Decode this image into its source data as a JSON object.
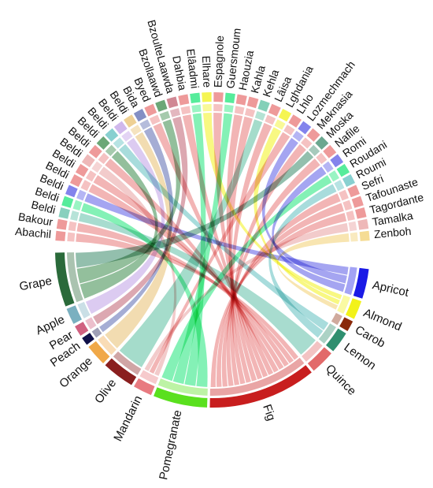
{
  "chart_data": {
    "type": "chord",
    "title": "",
    "groups": {
      "fruits": [
        {
          "name": "Apricot",
          "color": "#1a1ae6"
        },
        {
          "name": "Almond",
          "color": "#f2f21a"
        },
        {
          "name": "Carob",
          "color": "#8a2a0a"
        },
        {
          "name": "Lemon",
          "color": "#2f8f6f"
        },
        {
          "name": "Quince",
          "color": "#e26a6a"
        },
        {
          "name": "Fig",
          "color": "#c81e1e"
        },
        {
          "name": "Pomegranate",
          "color": "#5ae01e"
        },
        {
          "name": "Mandarin",
          "color": "#e87a80"
        },
        {
          "name": "Olive",
          "color": "#8a1e1e"
        },
        {
          "name": "Orange",
          "color": "#f0a848"
        },
        {
          "name": "Peach",
          "color": "#101048"
        },
        {
          "name": "Pear",
          "color": "#d06080"
        },
        {
          "name": "Apple",
          "color": "#7ab0c0"
        },
        {
          "name": "Grape",
          "color": "#2a6a3a"
        }
      ],
      "varieties": [
        {
          "name": "Abachil",
          "color": "#e87878"
        },
        {
          "name": "Bakour",
          "color": "#e87878"
        },
        {
          "name": "Beldi",
          "color": "#60c0a8"
        },
        {
          "name": "Beldi",
          "color": "#1ee67a"
        },
        {
          "name": "Beldi",
          "color": "#5a5ae6"
        },
        {
          "name": "Beldi",
          "color": "#e87878"
        },
        {
          "name": "Beldi",
          "color": "#e87878"
        },
        {
          "name": "Beldi",
          "color": "#e8a0a0"
        },
        {
          "name": "Beldi",
          "color": "#e87878"
        },
        {
          "name": "Beldi",
          "color": "#3a8a4a"
        },
        {
          "name": "Beldi",
          "color": "#60c0c0"
        },
        {
          "name": "Beldi",
          "color": "#c0a0e6"
        },
        {
          "name": "Beldi",
          "color": "#e8c070"
        },
        {
          "name": "Bida",
          "color": "#5a6ab0"
        },
        {
          "name": "Byed",
          "color": "#e87878"
        },
        {
          "name": "Bzollaawd",
          "color": "#3a8a4a"
        },
        {
          "name": "BzoulteLaawda",
          "color": "#c06070"
        },
        {
          "name": "Dahbia",
          "color": "#e87878"
        },
        {
          "name": "Elâadmi",
          "color": "#1ee67a"
        },
        {
          "name": "Elhare",
          "color": "#f2f21a"
        },
        {
          "name": "Espagnole",
          "color": "#e87878"
        },
        {
          "name": "Guersmoum",
          "color": "#1ee67a"
        },
        {
          "name": "Haouzia",
          "color": "#e87878"
        },
        {
          "name": "Kahla",
          "color": "#e87878"
        },
        {
          "name": "Kehla",
          "color": "#5ac0a0"
        },
        {
          "name": "Lâisa",
          "color": "#e87878"
        },
        {
          "name": "Lghdania",
          "color": "#f2f21a"
        },
        {
          "name": "Lhlo",
          "color": "#e87878"
        },
        {
          "name": "Lozmechmach",
          "color": "#5a5ae6"
        },
        {
          "name": "Meknasia",
          "color": "#e87878"
        },
        {
          "name": "Moska",
          "color": "#3a8a6a"
        },
        {
          "name": "Nafile",
          "color": "#e87878"
        },
        {
          "name": "Romi",
          "color": "#5a5ae6"
        },
        {
          "name": "Roudani",
          "color": "#1ee67a"
        },
        {
          "name": "Roumi",
          "color": "#60c0c0"
        },
        {
          "name": "Sefri",
          "color": "#e87878"
        },
        {
          "name": "Tafounaste",
          "color": "#e87878"
        },
        {
          "name": "Tagordante",
          "color": "#e87878"
        },
        {
          "name": "Tamalka",
          "color": "#e8a0a0"
        },
        {
          "name": "Zenboh",
          "color": "#f2d070"
        }
      ]
    },
    "links": [
      {
        "from": "Abachil",
        "to": "Fig"
      },
      {
        "from": "Bakour",
        "to": "Fig"
      },
      {
        "from": "Beldi",
        "to": "Quince"
      },
      {
        "from": "Beldi",
        "to": "Pomegranate"
      },
      {
        "from": "Beldi",
        "to": "Apricot"
      },
      {
        "from": "Beldi",
        "to": "Fig"
      },
      {
        "from": "Beldi",
        "to": "Fig"
      },
      {
        "from": "Beldi",
        "to": "Mandarin"
      },
      {
        "from": "Beldi",
        "to": "Fig"
      },
      {
        "from": "Beldi",
        "to": "Grape"
      },
      {
        "from": "Beldi",
        "to": "Lemon"
      },
      {
        "from": "Beldi",
        "to": "Apple"
      },
      {
        "from": "Beldi",
        "to": "Orange"
      },
      {
        "from": "Bida",
        "to": "Peach"
      },
      {
        "from": "Byed",
        "to": "Fig"
      },
      {
        "from": "Bzollaawd",
        "to": "Grape"
      },
      {
        "from": "BzoulteLaawda",
        "to": "Pear"
      },
      {
        "from": "Dahbia",
        "to": "Fig"
      },
      {
        "from": "Elâadmi",
        "to": "Pomegranate"
      },
      {
        "from": "Elhare",
        "to": "Almond"
      },
      {
        "from": "Espagnole",
        "to": "Fig"
      },
      {
        "from": "Guersmoum",
        "to": "Pomegranate"
      },
      {
        "from": "Haouzia",
        "to": "Fig"
      },
      {
        "from": "Kahla",
        "to": "Fig"
      },
      {
        "from": "Kehla",
        "to": "Olive"
      },
      {
        "from": "Lâisa",
        "to": "Fig"
      },
      {
        "from": "Lghdania",
        "to": "Almond"
      },
      {
        "from": "Lhlo",
        "to": "Mandarin"
      },
      {
        "from": "Lozmechmach",
        "to": "Apricot"
      },
      {
        "from": "Meknasia",
        "to": "Fig"
      },
      {
        "from": "Moska",
        "to": "Grape"
      },
      {
        "from": "Nafile",
        "to": "Fig"
      },
      {
        "from": "Romi",
        "to": "Apricot"
      },
      {
        "from": "Roudani",
        "to": "Pomegranate"
      },
      {
        "from": "Roumi",
        "to": "Lemon"
      },
      {
        "from": "Sefri",
        "to": "Fig"
      },
      {
        "from": "Tafounaste",
        "to": "Fig"
      },
      {
        "from": "Tagordante",
        "to": "Fig"
      },
      {
        "from": "Tamalka",
        "to": "Mandarin"
      },
      {
        "from": "Zenboh",
        "to": "Almond"
      }
    ]
  }
}
